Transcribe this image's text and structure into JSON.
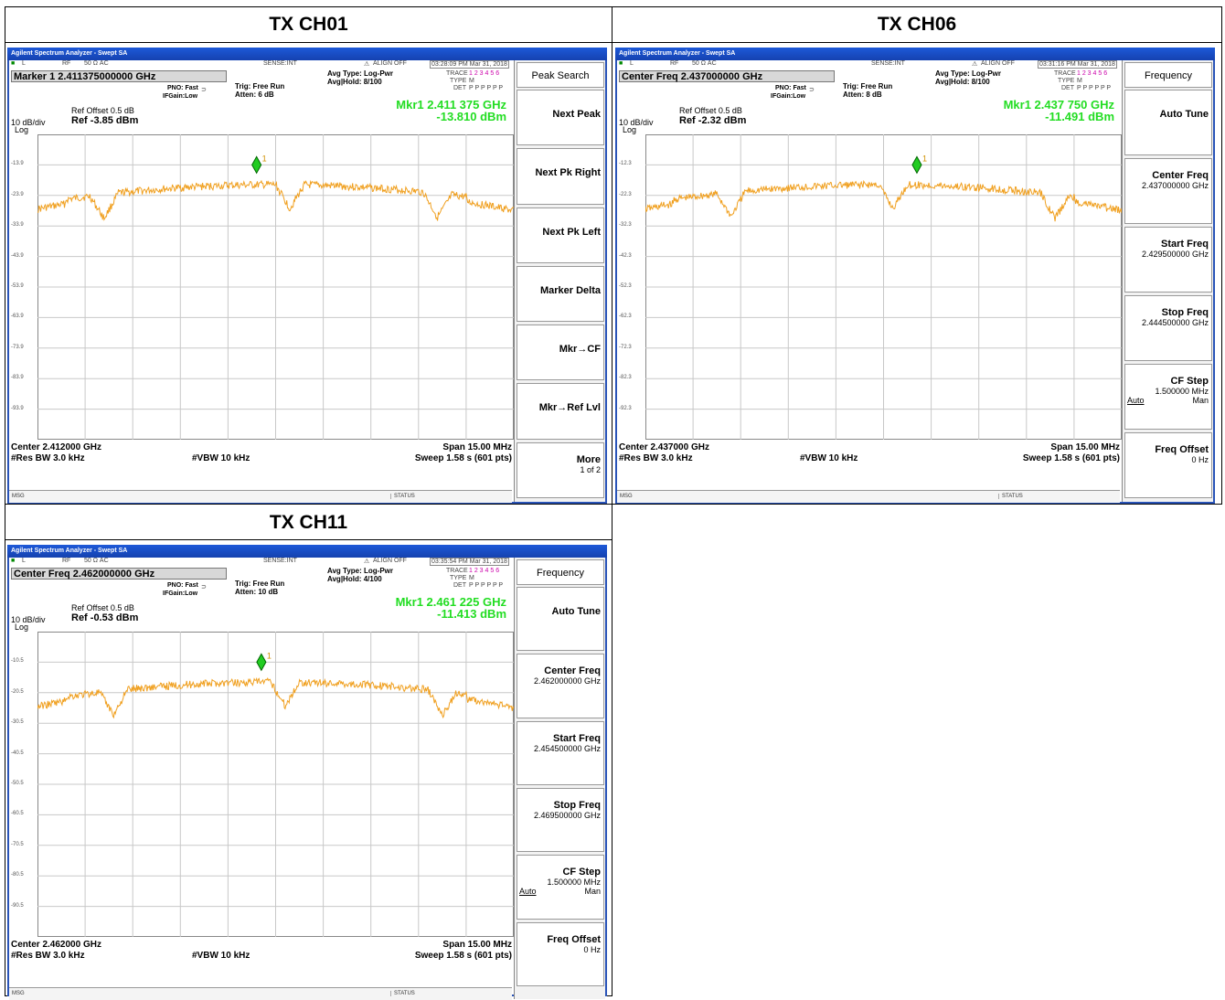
{
  "analyzers": [
    {
      "panel_title": "TX CH01",
      "window_title": "Agilent Spectrum Analyzer - Swept SA",
      "status_row": {
        "l": "L",
        "rf": "RF",
        "ohm": "50 Ω  AC",
        "sense": "SENSE:INT",
        "align": "ALIGN OFF",
        "time": "03:28:09 PM Mar 31, 2018"
      },
      "active_function": "Marker 1  2.411375000000 GHz",
      "pno": "PNO: Fast",
      "ifgain": "IFGain:Low",
      "trig": "Trig: Free Run",
      "atten": "Atten: 6 dB",
      "avg_type": "Avg Type: Log-Pwr",
      "avg_hold": "Avg|Hold: 8/100",
      "trace_rows": {
        "trace": "TRACE",
        "type": "TYPE",
        "det": "DET",
        "trace_val": "1 2 3 4 5 6",
        "type_val": "M",
        "det_val": "P P P P P P"
      },
      "ref_offset": "Ref Offset 0.5 dB",
      "ref_level": "Ref -3.85 dBm",
      "scale": "10 dB/div",
      "log": "Log",
      "marker_freq": "Mkr1 2.411 375 GHz",
      "marker_amp": "-13.810 dBm",
      "y_labels": [
        "-13.9",
        "-23.9",
        "-33.9",
        "-43.9",
        "-53.9",
        "-63.9",
        "-73.9",
        "-83.9",
        "-93.9"
      ],
      "center": "Center 2.412000 GHz",
      "span": "Span 15.00 MHz",
      "rbw": "#Res BW 3.0 kHz",
      "vbw": "#VBW 10 kHz",
      "sweep": "Sweep  1.58 s (601 pts)",
      "msg": "MSG",
      "status_label": "STATUS",
      "marker_label": "1",
      "softkey_menu": "Peak Search",
      "softkeys": [
        {
          "label": "Next Peak",
          "sub": ""
        },
        {
          "label": "Next Pk Right",
          "sub": ""
        },
        {
          "label": "Next Pk Left",
          "sub": ""
        },
        {
          "label": "Marker Delta",
          "sub": ""
        },
        {
          "label": "Mkr→CF",
          "sub": ""
        },
        {
          "label": "Mkr→Ref Lvl",
          "sub": ""
        },
        {
          "label": "More",
          "sub": "1 of 2"
        }
      ]
    },
    {
      "panel_title": "TX CH06",
      "window_title": "Agilent Spectrum Analyzer - Swept SA",
      "status_row": {
        "l": "L",
        "rf": "RF",
        "ohm": "50 Ω  AC",
        "sense": "SENSE:INT",
        "align": "ALIGN OFF",
        "time": "03:31:16 PM Mar 31, 2018"
      },
      "active_function": "Center Freq  2.437000000 GHz",
      "pno": "PNO: Fast",
      "ifgain": "IFGain:Low",
      "trig": "Trig: Free Run",
      "atten": "Atten: 8 dB",
      "avg_type": "Avg Type: Log-Pwr",
      "avg_hold": "Avg|Hold: 8/100",
      "trace_rows": {
        "trace": "TRACE",
        "type": "TYPE",
        "det": "DET",
        "trace_val": "1 2 3 4 5 6",
        "type_val": "M",
        "det_val": "P P P P P P"
      },
      "ref_offset": "Ref Offset 0.5 dB",
      "ref_level": "Ref -2.32 dBm",
      "scale": "10 dB/div",
      "log": "Log",
      "marker_freq": "Mkr1 2.437 750 GHz",
      "marker_amp": "-11.491 dBm",
      "y_labels": [
        "-12.3",
        "-22.3",
        "-32.3",
        "-42.3",
        "-52.3",
        "-62.3",
        "-72.3",
        "-82.3",
        "-92.3"
      ],
      "center": "Center 2.437000 GHz",
      "span": "Span 15.00 MHz",
      "rbw": "#Res BW 3.0 kHz",
      "vbw": "#VBW 10 kHz",
      "sweep": "Sweep  1.58 s (601 pts)",
      "msg": "MSG",
      "status_label": "STATUS",
      "marker_label": "1",
      "softkey_menu": "Frequency",
      "softkeys": [
        {
          "label": "Auto Tune",
          "sub": ""
        },
        {
          "label": "Center Freq",
          "sub": "2.437000000 GHz"
        },
        {
          "label": "Start Freq",
          "sub": "2.429500000 GHz"
        },
        {
          "label": "Stop Freq",
          "sub": "2.444500000 GHz"
        },
        {
          "label": "CF Step",
          "sub": "1.500000 MHz",
          "auto": "Auto",
          "man": "Man"
        },
        {
          "label": "Freq Offset",
          "sub": "0 Hz"
        }
      ]
    },
    {
      "panel_title": "TX CH11",
      "window_title": "Agilent Spectrum Analyzer - Swept SA",
      "status_row": {
        "l": "L",
        "rf": "RF",
        "ohm": "50 Ω  AC",
        "sense": "SENSE:INT",
        "align": "ALIGN OFF",
        "time": "03:35:54 PM Mar 31, 2018"
      },
      "active_function": "Center Freq  2.462000000 GHz",
      "pno": "PNO: Fast",
      "ifgain": "IFGain:Low",
      "trig": "Trig: Free Run",
      "atten": "Atten: 10 dB",
      "avg_type": "Avg Type: Log-Pwr",
      "avg_hold": "Avg|Hold: 4/100",
      "trace_rows": {
        "trace": "TRACE",
        "type": "TYPE",
        "det": "DET",
        "trace_val": "1 2 3 4 5 6",
        "type_val": "M",
        "det_val": "P P P P P P"
      },
      "ref_offset": "Ref Offset 0.5 dB",
      "ref_level": "Ref -0.53 dBm",
      "scale": "10 dB/div",
      "log": "Log",
      "marker_freq": "Mkr1 2.461 225 GHz",
      "marker_amp": "-11.413 dBm",
      "y_labels": [
        "-10.5",
        "-20.5",
        "-30.5",
        "-40.5",
        "-50.5",
        "-60.5",
        "-70.5",
        "-80.5",
        "-90.5"
      ],
      "center": "Center 2.462000 GHz",
      "span": "Span 15.00 MHz",
      "rbw": "#Res BW 3.0 kHz",
      "vbw": "#VBW 10 kHz",
      "sweep": "Sweep  1.58 s (601 pts)",
      "msg": "MSG",
      "status_label": "STATUS",
      "marker_label": "1",
      "softkey_menu": "Frequency",
      "softkeys": [
        {
          "label": "Auto Tune",
          "sub": ""
        },
        {
          "label": "Center Freq",
          "sub": "2.462000000 GHz"
        },
        {
          "label": "Start Freq",
          "sub": "2.454500000 GHz"
        },
        {
          "label": "Stop Freq",
          "sub": "2.469500000 GHz"
        },
        {
          "label": "CF Step",
          "sub": "1.500000 MHz",
          "auto": "Auto",
          "man": "Man"
        },
        {
          "label": "Freq Offset",
          "sub": "0 Hz"
        }
      ]
    }
  ],
  "colors": {
    "trace": "#f0a020",
    "marker": "#22cc22",
    "marker_text": "#22dd22",
    "titlebar": "#1a4fc8",
    "grid": "#c8c8c8"
  }
}
